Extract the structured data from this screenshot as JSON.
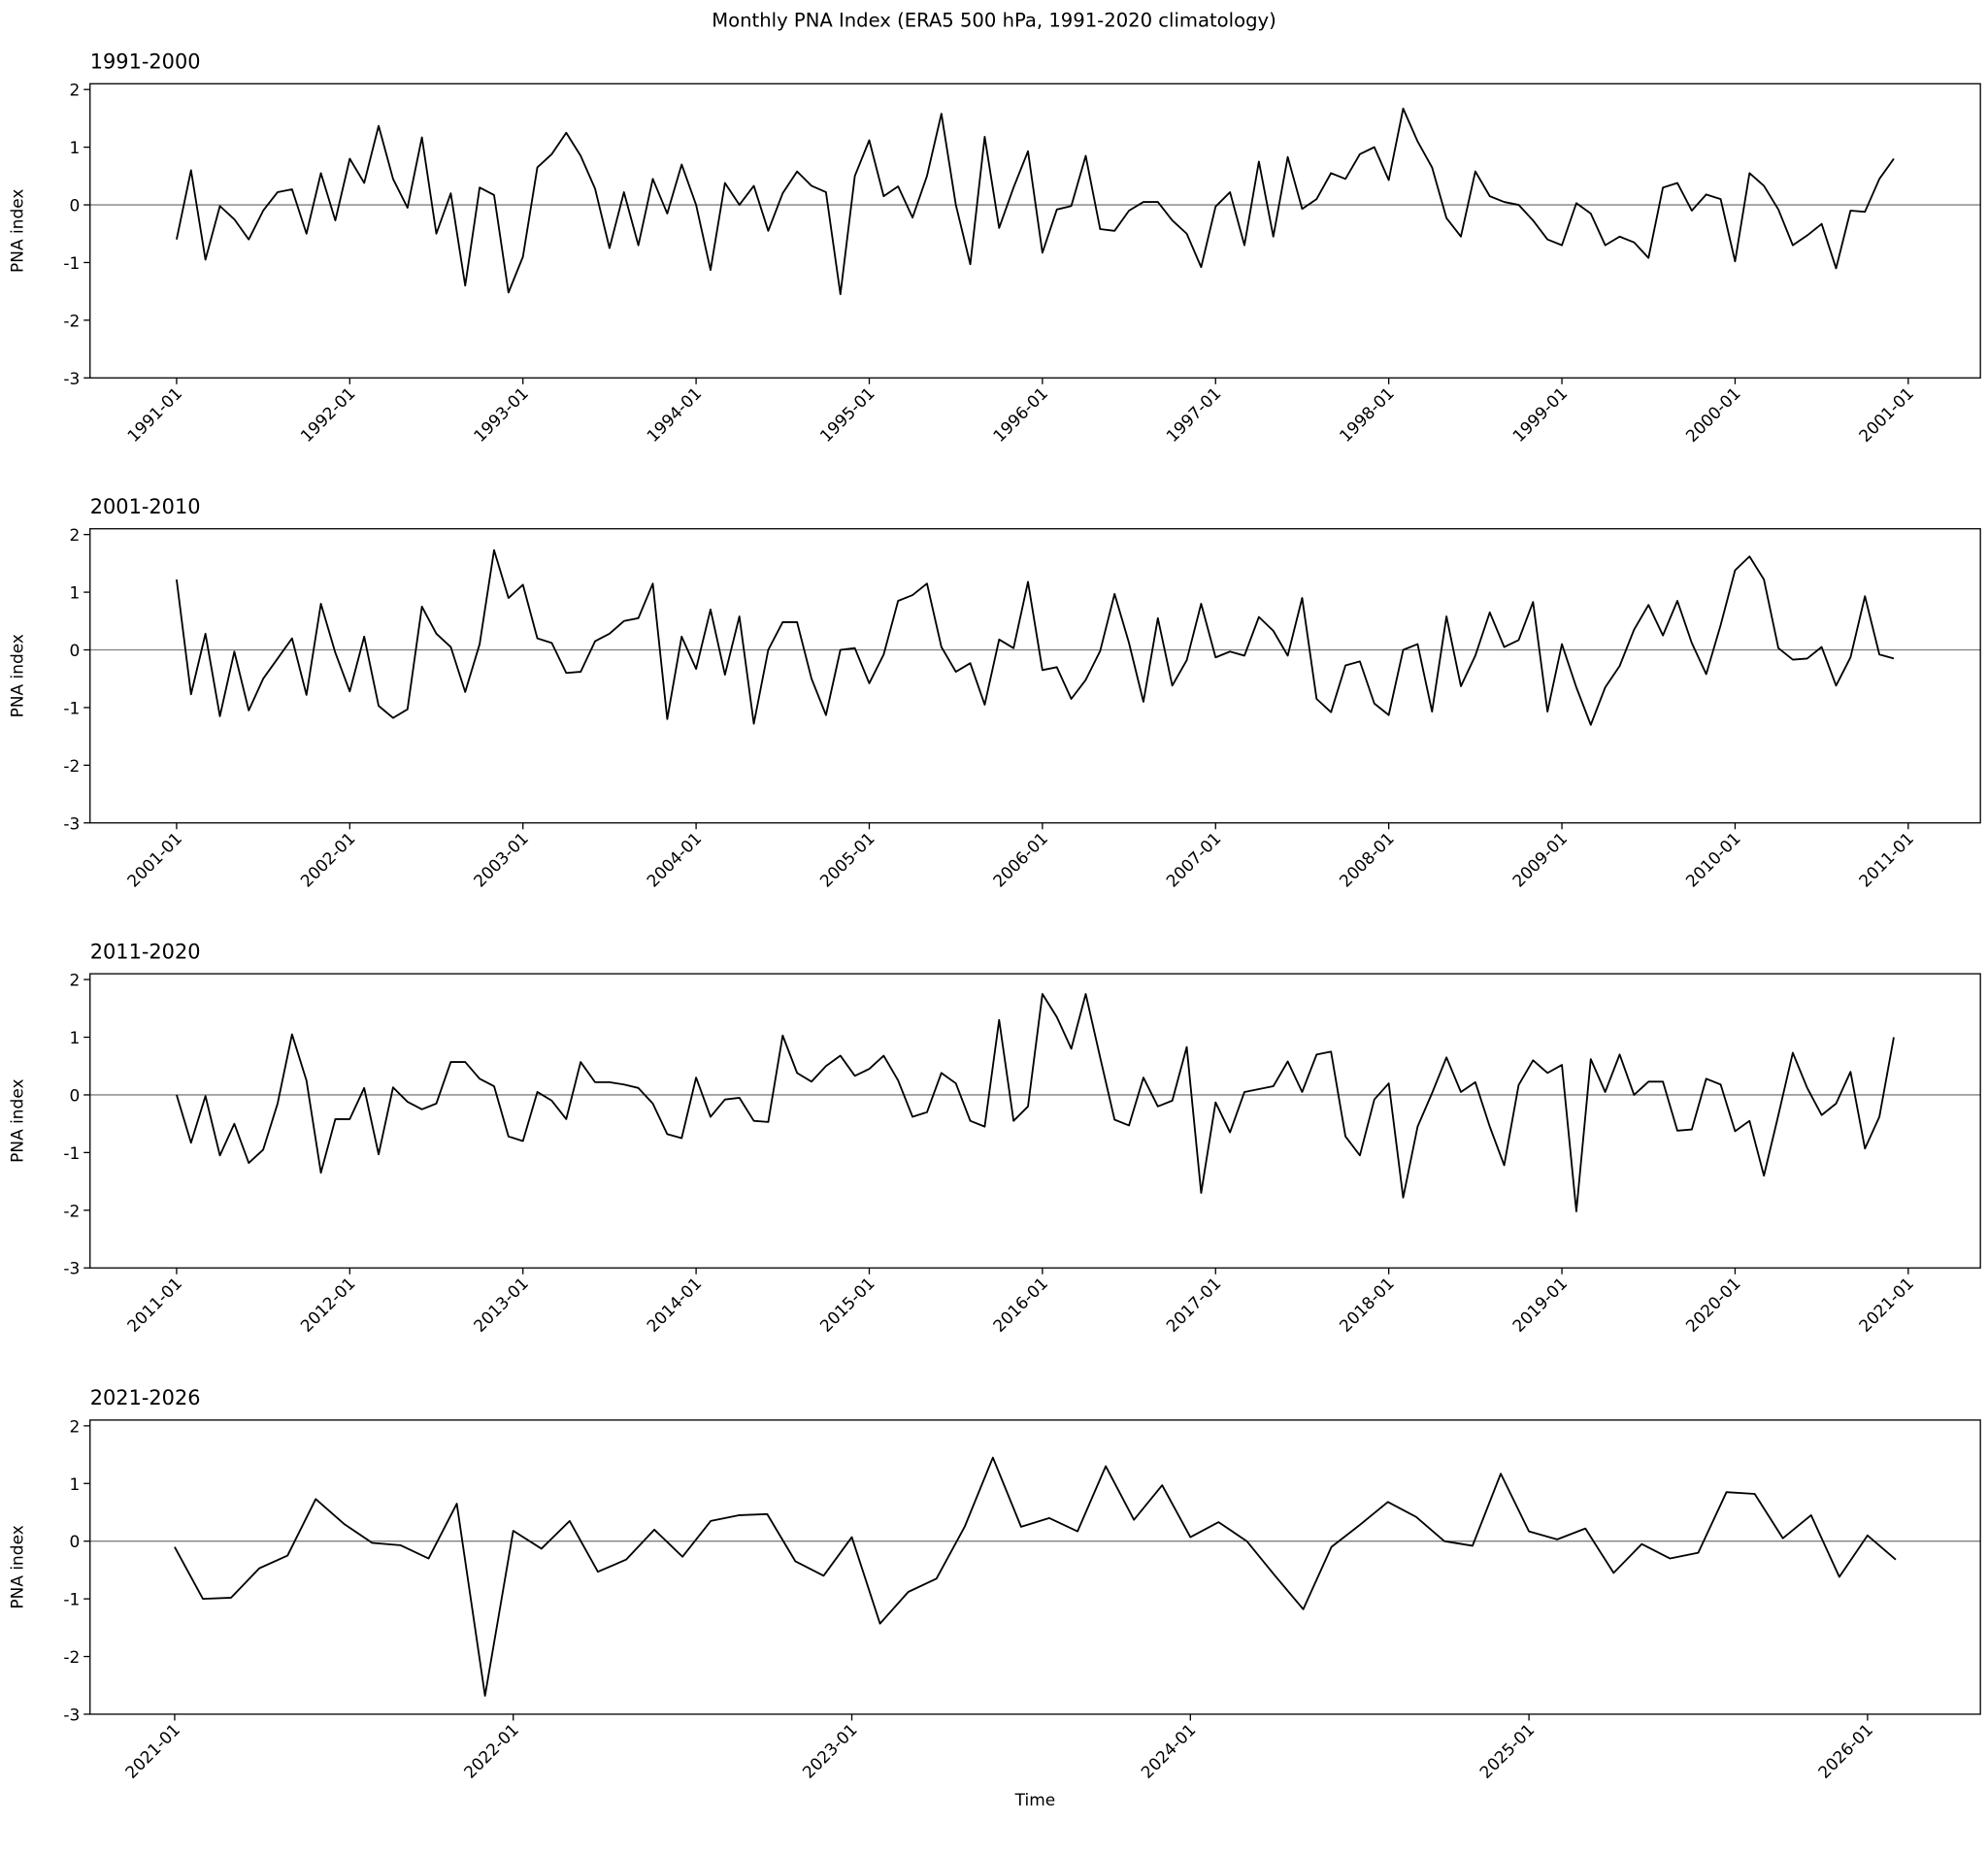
{
  "title": "Monthly PNA Index (ERA5 500 hPa, 1991-2020 climatology)",
  "chart_data": [
    {
      "type": "line",
      "title": "1991-2000",
      "ylabel": "PNA index",
      "color": "#000000",
      "axhline": {
        "value": 0,
        "color": "#808080"
      },
      "xlim": [
        "1990-07",
        "2001-06"
      ],
      "ylim": [
        -3,
        2.1
      ],
      "yticks": [
        -3,
        -2,
        -1,
        0,
        1,
        2
      ],
      "xticks": [
        "1991-01",
        "1992-01",
        "1993-01",
        "1994-01",
        "1995-01",
        "1996-01",
        "1997-01",
        "1998-01",
        "1999-01",
        "2000-01",
        "2001-01"
      ],
      "x": [
        "1991-01",
        "1991-02",
        "1991-03",
        "1991-04",
        "1991-05",
        "1991-06",
        "1991-07",
        "1991-08",
        "1991-09",
        "1991-10",
        "1991-11",
        "1991-12",
        "1992-01",
        "1992-02",
        "1992-03",
        "1992-04",
        "1992-05",
        "1992-06",
        "1992-07",
        "1992-08",
        "1992-09",
        "1992-10",
        "1992-11",
        "1992-12",
        "1993-01",
        "1993-02",
        "1993-03",
        "1993-04",
        "1993-05",
        "1993-06",
        "1993-07",
        "1993-08",
        "1993-09",
        "1993-10",
        "1993-11",
        "1993-12",
        "1994-01",
        "1994-02",
        "1994-03",
        "1994-04",
        "1994-05",
        "1994-06",
        "1994-07",
        "1994-08",
        "1994-09",
        "1994-10",
        "1994-11",
        "1994-12",
        "1995-01",
        "1995-02",
        "1995-03",
        "1995-04",
        "1995-05",
        "1995-06",
        "1995-07",
        "1995-08",
        "1995-09",
        "1995-10",
        "1995-11",
        "1995-12",
        "1996-01",
        "1996-02",
        "1996-03",
        "1996-04",
        "1996-05",
        "1996-06",
        "1996-07",
        "1996-08",
        "1996-09",
        "1996-10",
        "1996-11",
        "1996-12",
        "1997-01",
        "1997-02",
        "1997-03",
        "1997-04",
        "1997-05",
        "1997-06",
        "1997-07",
        "1997-08",
        "1997-09",
        "1997-10",
        "1997-11",
        "1997-12",
        "1998-01",
        "1998-02",
        "1998-03",
        "1998-04",
        "1998-05",
        "1998-06",
        "1998-07",
        "1998-08",
        "1998-09",
        "1998-10",
        "1998-11",
        "1998-12",
        "1999-01",
        "1999-02",
        "1999-03",
        "1999-04",
        "1999-05",
        "1999-06",
        "1999-07",
        "1999-08",
        "1999-09",
        "1999-10",
        "1999-11",
        "1999-12",
        "2000-01",
        "2000-02",
        "2000-03",
        "2000-04",
        "2000-05",
        "2000-06",
        "2000-07",
        "2000-08",
        "2000-09",
        "2000-10",
        "2000-11",
        "2000-12"
      ],
      "values": [
        -0.6,
        0.6,
        -0.95,
        -0.02,
        -0.25,
        -0.6,
        -0.1,
        0.22,
        0.27,
        -0.5,
        0.55,
        -0.27,
        0.8,
        0.38,
        1.37,
        0.45,
        -0.05,
        1.17,
        -0.5,
        0.2,
        -1.4,
        0.3,
        0.17,
        -1.52,
        -0.9,
        0.65,
        0.88,
        1.25,
        0.85,
        0.28,
        -0.75,
        0.22,
        -0.7,
        0.45,
        -0.15,
        0.7,
        0.0,
        -1.13,
        0.38,
        0.0,
        0.33,
        -0.45,
        0.2,
        0.58,
        0.33,
        0.22,
        -1.55,
        0.5,
        1.12,
        0.15,
        0.32,
        -0.22,
        0.5,
        1.58,
        0.0,
        -1.03,
        1.18,
        -0.4,
        0.3,
        0.93,
        -0.83,
        -0.08,
        -0.02,
        0.85,
        -0.42,
        -0.45,
        -0.1,
        0.05,
        0.05,
        -0.27,
        -0.5,
        -1.08,
        -0.03,
        0.22,
        -0.7,
        0.75,
        -0.55,
        0.83,
        -0.07,
        0.1,
        0.55,
        0.45,
        0.88,
        1.0,
        0.43,
        1.67,
        1.1,
        0.65,
        -0.23,
        -0.55,
        0.58,
        0.15,
        0.05,
        0.0,
        -0.27,
        -0.6,
        -0.7,
        0.03,
        -0.15,
        -0.7,
        -0.55,
        -0.65,
        -0.92,
        0.3,
        0.38,
        -0.1,
        0.18,
        0.1,
        -0.98,
        0.55,
        0.33,
        -0.08,
        -0.7,
        -0.53,
        -0.33,
        -1.1,
        -0.1,
        -0.12,
        0.45,
        0.8
      ]
    },
    {
      "type": "line",
      "title": "2001-2010",
      "ylabel": "PNA index",
      "color": "#000000",
      "axhline": {
        "value": 0,
        "color": "#808080"
      },
      "xlim": [
        "2000-07",
        "2011-06"
      ],
      "ylim": [
        -3,
        2.1
      ],
      "yticks": [
        -3,
        -2,
        -1,
        0,
        1,
        2
      ],
      "xticks": [
        "2001-01",
        "2002-01",
        "2003-01",
        "2004-01",
        "2005-01",
        "2006-01",
        "2007-01",
        "2008-01",
        "2009-01",
        "2010-01",
        "2011-01"
      ],
      "x": [
        "2001-01",
        "2001-02",
        "2001-03",
        "2001-04",
        "2001-05",
        "2001-06",
        "2001-07",
        "2001-08",
        "2001-09",
        "2001-10",
        "2001-11",
        "2001-12",
        "2002-01",
        "2002-02",
        "2002-03",
        "2002-04",
        "2002-05",
        "2002-06",
        "2002-07",
        "2002-08",
        "2002-09",
        "2002-10",
        "2002-11",
        "2002-12",
        "2003-01",
        "2003-02",
        "2003-03",
        "2003-04",
        "2003-05",
        "2003-06",
        "2003-07",
        "2003-08",
        "2003-09",
        "2003-10",
        "2003-11",
        "2003-12",
        "2004-01",
        "2004-02",
        "2004-03",
        "2004-04",
        "2004-05",
        "2004-06",
        "2004-07",
        "2004-08",
        "2004-09",
        "2004-10",
        "2004-11",
        "2004-12",
        "2005-01",
        "2005-02",
        "2005-03",
        "2005-04",
        "2005-05",
        "2005-06",
        "2005-07",
        "2005-08",
        "2005-09",
        "2005-10",
        "2005-11",
        "2005-12",
        "2006-01",
        "2006-02",
        "2006-03",
        "2006-04",
        "2006-05",
        "2006-06",
        "2006-07",
        "2006-08",
        "2006-09",
        "2006-10",
        "2006-11",
        "2006-12",
        "2007-01",
        "2007-02",
        "2007-03",
        "2007-04",
        "2007-05",
        "2007-06",
        "2007-07",
        "2007-08",
        "2007-09",
        "2007-10",
        "2007-11",
        "2007-12",
        "2008-01",
        "2008-02",
        "2008-03",
        "2008-04",
        "2008-05",
        "2008-06",
        "2008-07",
        "2008-08",
        "2008-09",
        "2008-10",
        "2008-11",
        "2008-12",
        "2009-01",
        "2009-02",
        "2009-03",
        "2009-04",
        "2009-05",
        "2009-06",
        "2009-07",
        "2009-08",
        "2009-09",
        "2009-10",
        "2009-11",
        "2009-12",
        "2010-01",
        "2010-02",
        "2010-03",
        "2010-04",
        "2010-05",
        "2010-06",
        "2010-07",
        "2010-08",
        "2010-09",
        "2010-10",
        "2010-11",
        "2010-12"
      ],
      "values": [
        1.22,
        -0.77,
        0.28,
        -1.15,
        -0.03,
        -1.05,
        -0.5,
        -0.15,
        0.2,
        -0.78,
        0.8,
        -0.05,
        -0.72,
        0.23,
        -0.97,
        -1.18,
        -1.03,
        0.75,
        0.28,
        0.05,
        -0.73,
        0.1,
        1.73,
        0.9,
        1.13,
        0.2,
        0.12,
        -0.4,
        -0.38,
        0.15,
        0.28,
        0.5,
        0.55,
        1.15,
        -1.2,
        0.23,
        -0.33,
        0.7,
        -0.43,
        0.58,
        -1.28,
        0.0,
        0.48,
        0.48,
        -0.5,
        -1.13,
        0.0,
        0.03,
        -0.58,
        -0.08,
        0.85,
        0.95,
        1.15,
        0.05,
        -0.38,
        -0.23,
        -0.95,
        0.18,
        0.03,
        1.18,
        -0.35,
        -0.3,
        -0.85,
        -0.52,
        -0.02,
        0.97,
        0.12,
        -0.9,
        0.55,
        -0.62,
        -0.18,
        0.8,
        -0.13,
        -0.03,
        -0.1,
        0.57,
        0.33,
        -0.1,
        0.9,
        -0.85,
        -1.08,
        -0.27,
        -0.2,
        -0.93,
        -1.13,
        0.0,
        0.1,
        -1.07,
        0.58,
        -0.63,
        -0.1,
        0.65,
        0.05,
        0.17,
        0.83,
        -1.07,
        0.1,
        -0.65,
        -1.3,
        -0.65,
        -0.28,
        0.35,
        0.78,
        0.25,
        0.85,
        0.12,
        -0.42,
        0.43,
        1.38,
        1.62,
        1.22,
        0.03,
        -0.17,
        -0.15,
        0.05,
        -0.62,
        -0.13,
        0.93,
        -0.08,
        -0.15
      ]
    },
    {
      "type": "line",
      "title": "2011-2020",
      "ylabel": "PNA index",
      "color": "#000000",
      "axhline": {
        "value": 0,
        "color": "#808080"
      },
      "xlim": [
        "2010-07",
        "2021-06"
      ],
      "ylim": [
        -3,
        2.1
      ],
      "yticks": [
        -3,
        -2,
        -1,
        0,
        1,
        2
      ],
      "xticks": [
        "2011-01",
        "2012-01",
        "2013-01",
        "2014-01",
        "2015-01",
        "2016-01",
        "2017-01",
        "2018-01",
        "2019-01",
        "2020-01",
        "2021-01"
      ],
      "x": [
        "2011-01",
        "2011-02",
        "2011-03",
        "2011-04",
        "2011-05",
        "2011-06",
        "2011-07",
        "2011-08",
        "2011-09",
        "2011-10",
        "2011-11",
        "2011-12",
        "2012-01",
        "2012-02",
        "2012-03",
        "2012-04",
        "2012-05",
        "2012-06",
        "2012-07",
        "2012-08",
        "2012-09",
        "2012-10",
        "2012-11",
        "2012-12",
        "2013-01",
        "2013-02",
        "2013-03",
        "2013-04",
        "2013-05",
        "2013-06",
        "2013-07",
        "2013-08",
        "2013-09",
        "2013-10",
        "2013-11",
        "2013-12",
        "2014-01",
        "2014-02",
        "2014-03",
        "2014-04",
        "2014-05",
        "2014-06",
        "2014-07",
        "2014-08",
        "2014-09",
        "2014-10",
        "2014-11",
        "2014-12",
        "2015-01",
        "2015-02",
        "2015-03",
        "2015-04",
        "2015-05",
        "2015-06",
        "2015-07",
        "2015-08",
        "2015-09",
        "2015-10",
        "2015-11",
        "2015-12",
        "2016-01",
        "2016-02",
        "2016-03",
        "2016-04",
        "2016-05",
        "2016-06",
        "2016-07",
        "2016-08",
        "2016-09",
        "2016-10",
        "2016-11",
        "2016-12",
        "2017-01",
        "2017-02",
        "2017-03",
        "2017-04",
        "2017-05",
        "2017-06",
        "2017-07",
        "2017-08",
        "2017-09",
        "2017-10",
        "2017-11",
        "2017-12",
        "2018-01",
        "2018-02",
        "2018-03",
        "2018-04",
        "2018-05",
        "2018-06",
        "2018-07",
        "2018-08",
        "2018-09",
        "2018-10",
        "2018-11",
        "2018-12",
        "2019-01",
        "2019-02",
        "2019-03",
        "2019-04",
        "2019-05",
        "2019-06",
        "2019-07",
        "2019-08",
        "2019-09",
        "2019-10",
        "2019-11",
        "2019-12",
        "2020-01",
        "2020-02",
        "2020-03",
        "2020-04",
        "2020-05",
        "2020-06",
        "2020-07",
        "2020-08",
        "2020-09",
        "2020-10",
        "2020-11",
        "2020-12"
      ],
      "values": [
        0.0,
        -0.83,
        -0.02,
        -1.05,
        -0.5,
        -1.18,
        -0.95,
        -0.15,
        1.05,
        0.25,
        -1.35,
        -0.42,
        -0.42,
        0.12,
        -1.03,
        0.13,
        -0.12,
        -0.25,
        -0.15,
        0.57,
        0.57,
        0.28,
        0.15,
        -0.72,
        -0.8,
        0.05,
        -0.1,
        -0.42,
        0.57,
        0.22,
        0.22,
        0.18,
        0.12,
        -0.15,
        -0.68,
        -0.75,
        0.3,
        -0.38,
        -0.08,
        -0.05,
        -0.45,
        -0.47,
        1.03,
        0.38,
        0.23,
        0.5,
        0.68,
        0.33,
        0.45,
        0.68,
        0.25,
        -0.38,
        -0.3,
        0.38,
        0.2,
        -0.45,
        -0.55,
        1.3,
        -0.45,
        -0.2,
        1.75,
        1.35,
        0.8,
        1.75,
        0.65,
        -0.43,
        -0.53,
        0.3,
        -0.2,
        -0.1,
        0.83,
        -1.7,
        -0.13,
        -0.65,
        0.05,
        0.1,
        0.15,
        0.58,
        0.05,
        0.7,
        0.75,
        -0.72,
        -1.05,
        -0.08,
        0.2,
        -1.78,
        -0.55,
        0.03,
        0.65,
        0.05,
        0.22,
        -0.55,
        -1.22,
        0.17,
        0.6,
        0.38,
        0.52,
        -2.02,
        0.62,
        0.05,
        0.7,
        0.0,
        0.23,
        0.23,
        -0.62,
        -0.6,
        0.28,
        0.18,
        -0.63,
        -0.45,
        -1.4,
        -0.35,
        0.73,
        0.12,
        -0.35,
        -0.15,
        0.4,
        -0.93,
        -0.38,
        1.0
      ]
    },
    {
      "type": "line",
      "title": "2021-2026",
      "ylabel": "PNA index",
      "xlabel": "Time",
      "color": "#000000",
      "axhline": {
        "value": 0,
        "color": "#808080"
      },
      "xlim": [
        "2020-10",
        "2026-05"
      ],
      "ylim": [
        -3,
        2.1
      ],
      "yticks": [
        -3,
        -2,
        -1,
        0,
        1,
        2
      ],
      "xticks": [
        "2021-01",
        "2022-01",
        "2023-01",
        "2024-01",
        "2025-01",
        "2026-01"
      ],
      "x": [
        "2021-01",
        "2021-02",
        "2021-03",
        "2021-04",
        "2021-05",
        "2021-06",
        "2021-07",
        "2021-08",
        "2021-09",
        "2021-10",
        "2021-11",
        "2021-12",
        "2022-01",
        "2022-02",
        "2022-03",
        "2022-04",
        "2022-05",
        "2022-06",
        "2022-07",
        "2022-08",
        "2022-09",
        "2022-10",
        "2022-11",
        "2022-12",
        "2023-01",
        "2023-02",
        "2023-03",
        "2023-04",
        "2023-05",
        "2023-06",
        "2023-07",
        "2023-08",
        "2023-09",
        "2023-10",
        "2023-11",
        "2023-12",
        "2024-01",
        "2024-02",
        "2024-03",
        "2024-04",
        "2024-05",
        "2024-06",
        "2024-07",
        "2024-08",
        "2024-09",
        "2024-10",
        "2024-11",
        "2024-12",
        "2025-01",
        "2025-02",
        "2025-03",
        "2025-04",
        "2025-05",
        "2025-06",
        "2025-07",
        "2025-08",
        "2025-09",
        "2025-10",
        "2025-11",
        "2025-12",
        "2026-01",
        "2026-02"
      ],
      "values": [
        -0.1,
        -1.0,
        -0.98,
        -0.47,
        -0.25,
        0.73,
        0.3,
        -0.03,
        -0.07,
        -0.3,
        0.65,
        -2.68,
        0.18,
        -0.13,
        0.35,
        -0.53,
        -0.32,
        0.2,
        -0.27,
        0.35,
        0.45,
        0.47,
        -0.35,
        -0.6,
        0.07,
        -1.43,
        -0.88,
        -0.65,
        0.25,
        1.45,
        0.25,
        0.4,
        0.17,
        1.3,
        0.37,
        0.97,
        0.07,
        0.33,
        0.0,
        -0.6,
        -1.18,
        -0.1,
        0.28,
        0.68,
        0.42,
        0.0,
        -0.08,
        1.17,
        0.17,
        0.03,
        0.22,
        -0.55,
        -0.05,
        -0.3,
        -0.2,
        0.85,
        0.82,
        0.05,
        0.45,
        -0.62,
        0.1,
        -0.32
      ]
    }
  ]
}
